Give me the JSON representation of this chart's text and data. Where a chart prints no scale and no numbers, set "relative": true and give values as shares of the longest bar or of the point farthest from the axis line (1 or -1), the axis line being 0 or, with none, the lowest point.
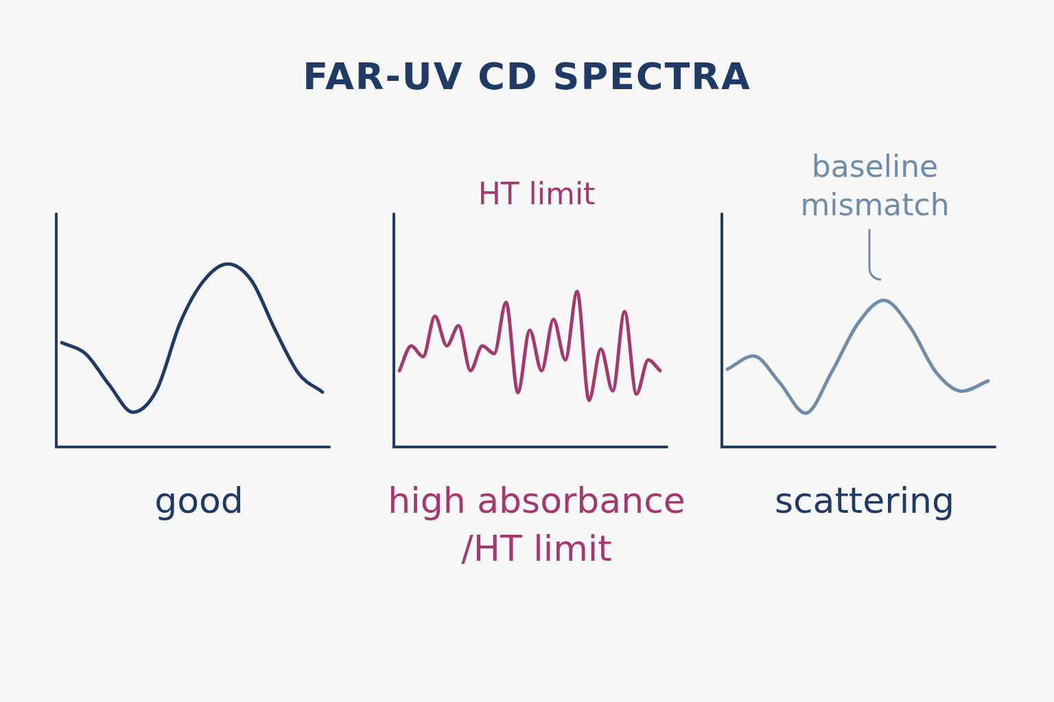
{
  "chart_data": [
    {
      "type": "line",
      "title": "FAR-UV CD SPECTRA",
      "xlabel": "good",
      "relative": true,
      "categories": [
        null,
        null,
        null,
        null,
        null,
        null,
        null,
        null,
        null,
        null,
        null,
        null
      ],
      "series": [
        {
          "color": "#1f3a64",
          "values": [
            0.57,
            0.51,
            0.34,
            0.19,
            0.31,
            0.68,
            0.91,
            1,
            0.91,
            0.64,
            0.4,
            0.3
          ]
        }
      ]
    },
    {
      "type": "line",
      "xlabel": "high absorbance /HT limit",
      "relative": true,
      "annotations": [
        "HT limit"
      ],
      "categories": [
        null,
        null,
        null,
        null,
        null,
        null,
        null,
        null,
        null,
        null,
        null,
        null,
        null,
        null,
        null,
        null,
        null,
        null,
        null,
        null,
        null,
        null,
        null
      ],
      "series": [
        {
          "color": "#a3396e",
          "values": [
            0.49,
            0.65,
            0.58,
            0.84,
            0.65,
            0.78,
            0.49,
            0.65,
            0.6,
            0.93,
            0.35,
            0.75,
            0.49,
            0.82,
            0.56,
            1,
            0.3,
            0.63,
            0.36,
            0.87,
            0.34,
            0.56,
            0.49
          ]
        }
      ]
    },
    {
      "type": "line",
      "xlabel": "scattering",
      "relative": true,
      "annotations": [
        "baseline mismatch"
      ],
      "categories": [
        null,
        null,
        null,
        null,
        null,
        null,
        null,
        null,
        null,
        null,
        null
      ],
      "series": [
        {
          "color": "#6f8ca8",
          "values": [
            0.53,
            0.62,
            0.44,
            0.23,
            0.51,
            0.84,
            1,
            0.82,
            0.51,
            0.38,
            0.45
          ]
        }
      ]
    }
  ]
}
